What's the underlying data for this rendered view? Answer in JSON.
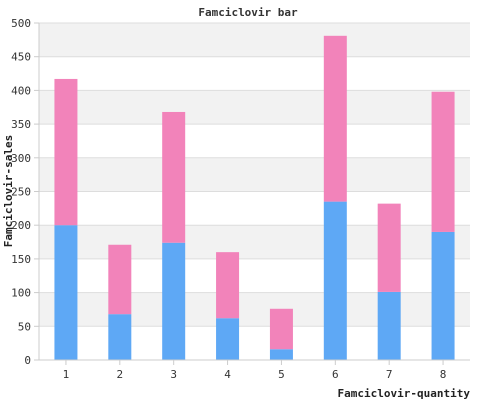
{
  "chart_data": {
    "type": "bar",
    "stacked": true,
    "title": "Famciclovir bar",
    "xlabel": "Famciclovir-quantity",
    "ylabel": "Famciclovir-sales",
    "categories": [
      "1",
      "2",
      "3",
      "4",
      "5",
      "6",
      "7",
      "8"
    ],
    "series": [
      {
        "color": "#5ea8f5",
        "values": [
          200,
          68,
          174,
          62,
          16,
          235,
          101,
          190
        ]
      },
      {
        "color": "#f283ba",
        "values": [
          217,
          103,
          194,
          98,
          60,
          246,
          131,
          208
        ]
      }
    ],
    "ylim": [
      0,
      500
    ],
    "yticks": [
      0,
      50,
      100,
      150,
      200,
      250,
      300,
      350,
      400,
      450,
      500
    ],
    "grid": true,
    "background_bands": [
      "#f2f2f2",
      "#ffffff"
    ]
  }
}
